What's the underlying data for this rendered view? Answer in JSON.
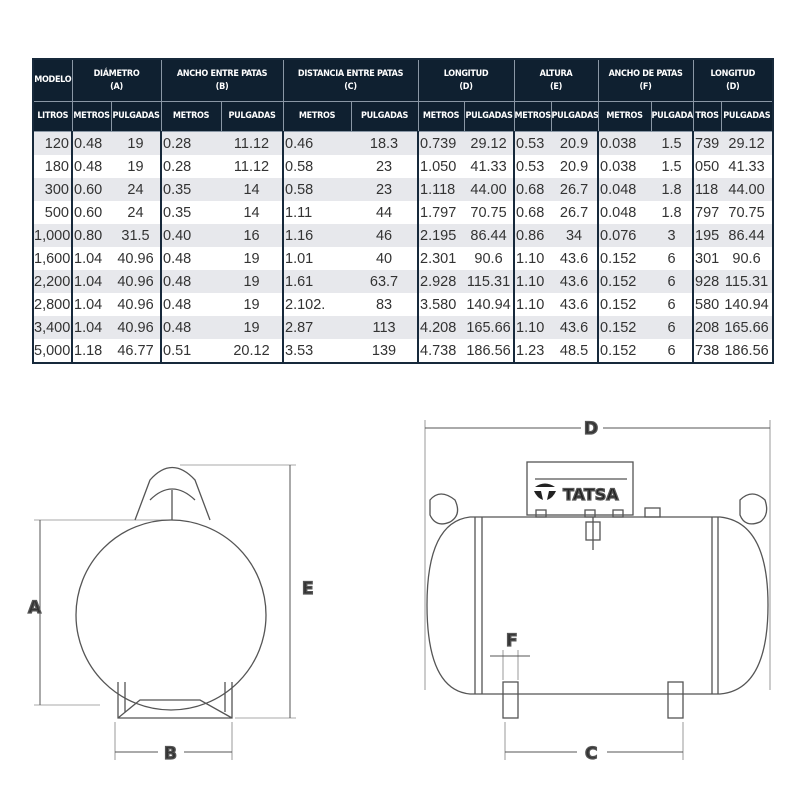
{
  "table": {
    "group_headers": [
      {
        "title": "MODELO",
        "sub": ""
      },
      {
        "title": "DIÁMETRO",
        "sub": "(A)"
      },
      {
        "title": "ANCHO ENTRE PATAS",
        "sub": "(B)"
      },
      {
        "title": "DISTANCIA ENTRE PATAS",
        "sub": "(C)"
      },
      {
        "title": "LONGITUD",
        "sub": "(D)"
      },
      {
        "title": "ALTURA",
        "sub": "(E)"
      },
      {
        "title": "ANCHO DE PATAS",
        "sub": "(F)"
      },
      {
        "title": "LONGITUD",
        "sub": "(D)"
      }
    ],
    "sub_headers": [
      "LITROS",
      "METROS",
      "PULGADAS",
      "METROS",
      "PULGADAS",
      "METROS",
      "PULGADAS",
      "METROS",
      "PULGADAS",
      "METROS",
      "PULGADAS",
      "METROS",
      "PULGADAS",
      "TROS",
      "PULGADAS"
    ],
    "rows": [
      [
        "120",
        "0.48",
        "19",
        "0.28",
        "11.12",
        "0.46",
        "18.3",
        "0.739",
        "29.12",
        "0.53",
        "20.9",
        "0.038",
        "1.5",
        "739",
        "29.12"
      ],
      [
        "180",
        "0.48",
        "19",
        "0.28",
        "11.12",
        "0.58",
        "23",
        "1.050",
        "41.33",
        "0.53",
        "20.9",
        "0.038",
        "1.5",
        "050",
        "41.33"
      ],
      [
        "300",
        "0.60",
        "24",
        "0.35",
        "14",
        "0.58",
        "23",
        "1.118",
        "44.00",
        "0.68",
        "26.7",
        "0.048",
        "1.8",
        "118",
        "44.00"
      ],
      [
        "500",
        "0.60",
        "24",
        "0.35",
        "14",
        "1.11",
        "44",
        "1.797",
        "70.75",
        "0.68",
        "26.7",
        "0.048",
        "1.8",
        "797",
        "70.75"
      ],
      [
        "1,000",
        "0.80",
        "31.5",
        "0.40",
        "16",
        "1.16",
        "46",
        "2.195",
        "86.44",
        "0.86",
        "34",
        "0.076",
        "3",
        "195",
        "86.44"
      ],
      [
        "1,600",
        "1.04",
        "40.96",
        "0.48",
        "19",
        "1.01",
        "40",
        "2.301",
        "90.6",
        "1.10",
        "43.6",
        "0.152",
        "6",
        "301",
        "90.6"
      ],
      [
        "2,200",
        "1.04",
        "40.96",
        "0.48",
        "19",
        "1.61",
        "63.7",
        "2.928",
        "115.31",
        "1.10",
        "43.6",
        "0.152",
        "6",
        "928",
        "115.31"
      ],
      [
        "2,800",
        "1.04",
        "40.96",
        "0.48",
        "19",
        "2.102.",
        "83",
        "3.580",
        "140.94",
        "1.10",
        "43.6",
        "0.152",
        "6",
        "580",
        "140.94"
      ],
      [
        "3,400",
        "1.04",
        "40.96",
        "0.48",
        "19",
        "2.87",
        "113",
        "4.208",
        "165.66",
        "1.10",
        "43.6",
        "0.152",
        "6",
        "208",
        "165.66"
      ],
      [
        "5,000",
        "1.18",
        "46.77",
        "0.51",
        "20.12",
        "3.53",
        "139",
        "4.738",
        "186.56",
        "1.23",
        "48.5",
        "0.152",
        "6",
        "738",
        "186.56"
      ]
    ]
  },
  "drawing": {
    "labels": {
      "a": "A",
      "b": "B",
      "c": "C",
      "d": "D",
      "e": "E",
      "f": "F"
    },
    "brand": "TATSA"
  },
  "colors": {
    "header_bg": "#0f2030",
    "row_alt": "#e7e8ec",
    "line": "#555555"
  }
}
